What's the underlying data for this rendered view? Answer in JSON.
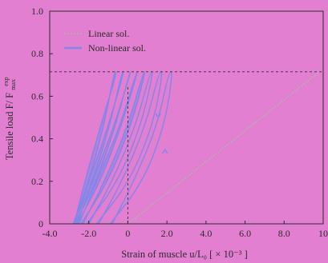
{
  "chart_data": {
    "type": "line",
    "xlabel": "Strain of muscle  u/L₀  [ × 10⁻³ ]",
    "ylabel": "Tensile load  F/ F",
    "ylabel_sup": "exp",
    "ylabel_sub": "max",
    "xlim": [
      -4.0,
      10.0
    ],
    "ylim": [
      0,
      1.0
    ],
    "xticks": [
      "-4.0",
      "-2.0",
      "0",
      "2.0",
      "4.0",
      "6.0",
      "8.0",
      "10"
    ],
    "yticks": [
      "0",
      "0.2",
      "0.4",
      "0.6",
      "0.8",
      "1.0"
    ],
    "legend_position": "top-left",
    "peak_load": 0.715,
    "colors": {
      "background": "#e37fd1",
      "linear": "#a9b8a8",
      "nonlinear": "#7f86ea",
      "axis": "#2b2b2b"
    },
    "series": [
      {
        "name": "Linear sol.",
        "style": "dotted",
        "x": [
          0.0,
          9.8
        ],
        "y": [
          0.0,
          0.715
        ]
      },
      {
        "name": "Non-linear sol.",
        "style": "solid",
        "loops": [
          {
            "x": [
              -2.8,
              -2.0,
              -1.2,
              -0.7,
              -0.55,
              -1.4,
              -2.2,
              -2.75
            ],
            "y": [
              0.0,
              0.2,
              0.47,
              0.715,
              0.715,
              0.46,
              0.2,
              0.0
            ]
          },
          {
            "x": [
              -2.75,
              -1.8,
              -0.9,
              -0.3,
              -0.2,
              -1.0,
              -2.0,
              -2.7
            ],
            "y": [
              0.0,
              0.2,
              0.47,
              0.715,
              0.715,
              0.46,
              0.2,
              0.0
            ]
          },
          {
            "x": [
              -2.7,
              -1.6,
              -0.6,
              0.1,
              0.15,
              -0.7,
              -1.8,
              -2.6
            ],
            "y": [
              0.0,
              0.2,
              0.47,
              0.715,
              0.715,
              0.46,
              0.2,
              0.0
            ]
          },
          {
            "x": [
              -2.6,
              -1.4,
              -0.3,
              0.5,
              0.45,
              -0.4,
              -1.6,
              -2.5
            ],
            "y": [
              0.0,
              0.2,
              0.47,
              0.715,
              0.715,
              0.46,
              0.2,
              0.0
            ]
          },
          {
            "x": [
              -2.4,
              -1.0,
              0.2,
              0.9,
              0.8,
              0.0,
              -1.2,
              -2.3
            ],
            "y": [
              0.0,
              0.2,
              0.47,
              0.715,
              0.715,
              0.46,
              0.2,
              0.0
            ]
          },
          {
            "x": [
              -2.1,
              -0.5,
              0.7,
              1.3,
              1.15,
              0.4,
              -0.8,
              -2.0
            ],
            "y": [
              0.0,
              0.2,
              0.47,
              0.715,
              0.715,
              0.46,
              0.2,
              0.0
            ]
          },
          {
            "x": [
              -1.6,
              0.1,
              1.3,
              1.8,
              1.6,
              0.9,
              -0.3,
              -1.5
            ],
            "y": [
              0.0,
              0.2,
              0.47,
              0.715,
              0.715,
              0.46,
              0.2,
              0.0
            ]
          },
          {
            "x": [
              -0.9,
              0.8,
              1.9,
              2.3,
              2.1,
              1.5,
              0.3,
              -0.8
            ],
            "y": [
              0.0,
              0.2,
              0.47,
              0.715,
              0.715,
              0.46,
              0.2,
              0.0
            ]
          }
        ]
      }
    ]
  }
}
